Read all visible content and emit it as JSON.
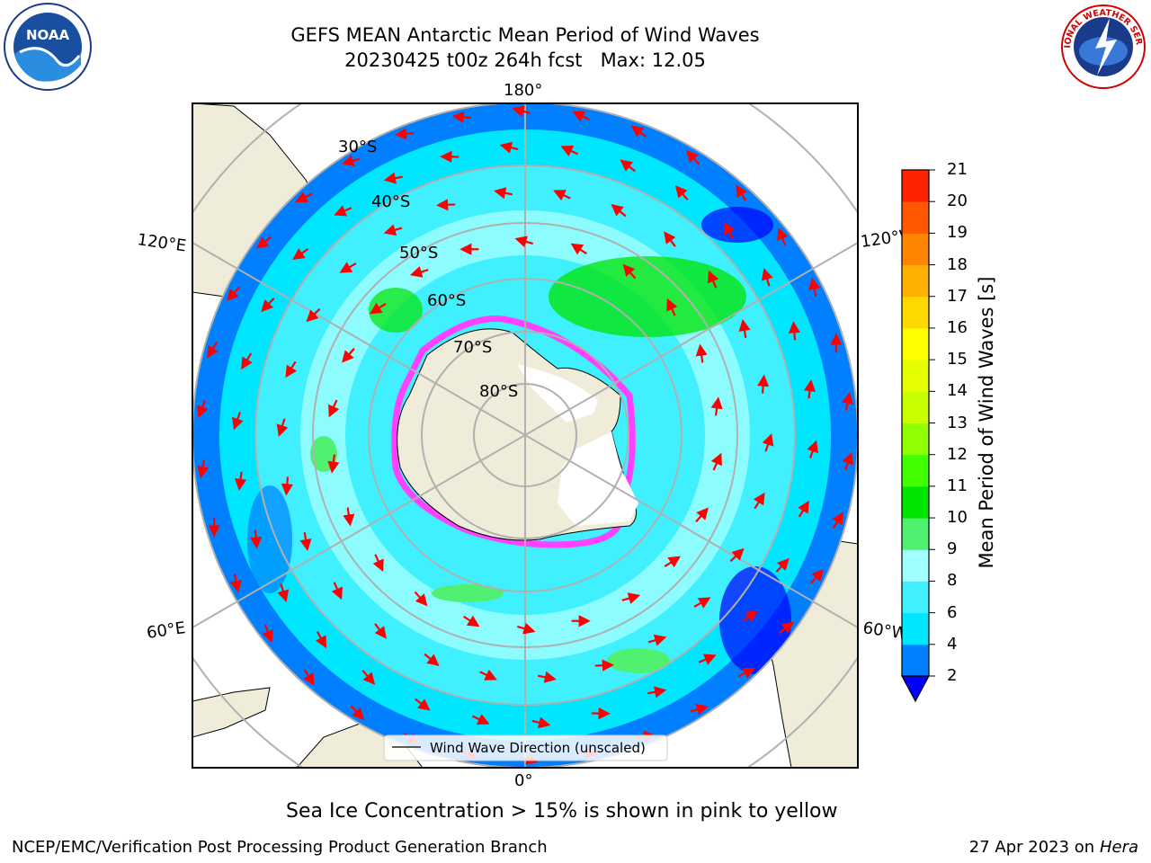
{
  "title": {
    "line1": "GEFS MEAN Antarctic Mean Period of Wind Waves",
    "line2": "20230425 t00z 264h fcst   Max: 12.05"
  },
  "map": {
    "projection": "south polar stereographic",
    "longitude_labels": [
      "180°",
      "120°E",
      "120°W",
      "60°E",
      "60°W",
      "0°"
    ],
    "latitude_labels": [
      "30°S",
      "40°S",
      "50°S",
      "60°S",
      "70°S",
      "80°S"
    ],
    "legend": "Wind Wave Direction (unscaled)",
    "arrow_color": "#ff0000"
  },
  "colorbar": {
    "label": "Mean Period of Wind Waves [s]",
    "ticks": [
      "2",
      "4",
      "6",
      "8",
      "9",
      "10",
      "11",
      "12",
      "13",
      "14",
      "15",
      "16",
      "17",
      "18",
      "19",
      "20",
      "21"
    ],
    "colors": [
      "#0000ff",
      "#0080ff",
      "#00e6ff",
      "#40f0ff",
      "#a0ffff",
      "#50f070",
      "#00e400",
      "#40ff00",
      "#90ff00",
      "#c8ff00",
      "#e6ff00",
      "#ffff00",
      "#ffd800",
      "#ffb000",
      "#ff8400",
      "#ff5800",
      "#ff2400",
      "#ff0000"
    ]
  },
  "caption": "Sea Ice Concentration > 15% is shown in pink to yellow",
  "footer": {
    "left": "NCEP/EMC/Verification Post Processing Product Generation Branch",
    "right_prefix": "27 Apr 2023 on ",
    "right_host": "Hera"
  },
  "logos": {
    "left": "NOAA",
    "right": "NATIONAL WEATHER SERVICE"
  }
}
